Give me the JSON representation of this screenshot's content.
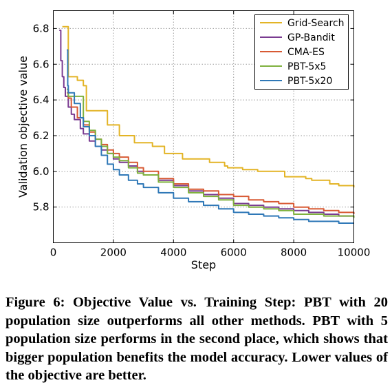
{
  "chart_data": {
    "type": "line",
    "title": "",
    "xlabel": "Step",
    "ylabel": "Validation objective value",
    "xlim": [
      0,
      10000
    ],
    "ylim": [
      5.6,
      6.9
    ],
    "xticks": [
      "0",
      "2000",
      "4000",
      "6000",
      "8000",
      "10000"
    ],
    "yticks": [
      "5.8",
      "6.0",
      "6.2",
      "6.4",
      "6.6",
      "6.8"
    ],
    "grid": true,
    "legend_position": "top-right",
    "series": [
      {
        "name": "Grid-Search",
        "color": "#e3b426",
        "x": [
          300,
          500,
          700,
          800,
          1000,
          1100,
          1700,
          1800,
          2100,
          2200,
          2600,
          2700,
          3200,
          3300,
          3500,
          3700,
          4000,
          4300,
          4500,
          4700,
          5200,
          5300,
          5500,
          5700,
          5800,
          6200,
          6300,
          6700,
          6800,
          7500,
          7700,
          8200,
          8400,
          8600,
          9000,
          9200,
          9500,
          10000
        ],
        "y": [
          6.81,
          6.53,
          6.53,
          6.51,
          6.48,
          6.34,
          6.34,
          6.26,
          6.26,
          6.2,
          6.2,
          6.16,
          6.16,
          6.14,
          6.14,
          6.1,
          6.1,
          6.07,
          6.07,
          6.07,
          6.05,
          6.05,
          6.05,
          6.03,
          6.02,
          6.02,
          6.01,
          6.01,
          6.0,
          6.0,
          5.97,
          5.97,
          5.96,
          5.95,
          5.95,
          5.93,
          5.92,
          5.91
        ]
      },
      {
        "name": "GP-Bandit",
        "color": "#7a3b91",
        "x": [
          200,
          250,
          300,
          350,
          400,
          500,
          600,
          700,
          900,
          1000,
          1200,
          1400,
          1600,
          1800,
          2000,
          2200,
          2500,
          2800,
          3000,
          3500,
          4000,
          4500,
          5000,
          5500,
          6000,
          6500,
          7000,
          7500,
          8000,
          8500,
          9000,
          9500,
          10000
        ],
        "y": [
          6.79,
          6.62,
          6.53,
          6.47,
          6.42,
          6.36,
          6.32,
          6.29,
          6.24,
          6.21,
          6.17,
          6.14,
          6.12,
          6.1,
          6.07,
          6.05,
          6.03,
          6.0,
          5.98,
          5.95,
          5.92,
          5.89,
          5.87,
          5.85,
          5.82,
          5.81,
          5.8,
          5.79,
          5.78,
          5.77,
          5.76,
          5.75,
          5.74
        ]
      },
      {
        "name": "CMA-ES",
        "color": "#d85a34",
        "x": [
          450,
          500,
          600,
          800,
          1000,
          1200,
          1400,
          1600,
          1800,
          2000,
          2200,
          2500,
          2800,
          3000,
          3500,
          4000,
          4500,
          5000,
          5500,
          6000,
          6500,
          7000,
          7500,
          8000,
          8500,
          9000,
          9500,
          10000
        ],
        "y": [
          6.44,
          6.41,
          6.36,
          6.3,
          6.26,
          6.22,
          6.18,
          6.15,
          6.12,
          6.1,
          6.08,
          6.05,
          6.02,
          6.0,
          5.96,
          5.93,
          5.9,
          5.89,
          5.87,
          5.86,
          5.84,
          5.83,
          5.82,
          5.8,
          5.79,
          5.78,
          5.77,
          5.76
        ]
      },
      {
        "name": "PBT-5x5",
        "color": "#7fb13e",
        "x": [
          450,
          500,
          900,
          1000,
          1200,
          1400,
          1600,
          1800,
          2000,
          2200,
          2500,
          2800,
          3000,
          3500,
          4000,
          4500,
          5000,
          5500,
          6000,
          6500,
          7000,
          7500,
          8000,
          8500,
          9000,
          9500,
          9900,
          10000
        ],
        "y": [
          6.46,
          6.42,
          6.42,
          6.28,
          6.23,
          6.18,
          6.14,
          6.1,
          6.08,
          6.06,
          6.02,
          5.99,
          5.98,
          5.94,
          5.91,
          5.88,
          5.86,
          5.84,
          5.81,
          5.8,
          5.79,
          5.78,
          5.76,
          5.76,
          5.75,
          5.75,
          5.75,
          5.74
        ]
      },
      {
        "name": "PBT-5x20",
        "color": "#2f78b7",
        "x": [
          450,
          480,
          500,
          700,
          900,
          1000,
          1200,
          1400,
          1600,
          1800,
          2000,
          2200,
          2500,
          2800,
          3000,
          3500,
          4000,
          4500,
          5000,
          5500,
          6000,
          6500,
          7000,
          7500,
          8000,
          8500,
          9000,
          9500,
          10000
        ],
        "y": [
          6.68,
          6.48,
          6.44,
          6.38,
          6.3,
          6.25,
          6.2,
          6.14,
          6.09,
          6.04,
          6.01,
          5.98,
          5.95,
          5.93,
          5.91,
          5.88,
          5.85,
          5.83,
          5.81,
          5.79,
          5.77,
          5.76,
          5.75,
          5.74,
          5.73,
          5.72,
          5.72,
          5.71,
          5.71
        ]
      }
    ]
  },
  "caption": "Figure 6: Objective Value vs. Training Step: PBT with 20 population size outperforms all other methods. PBT with 5 population size performs in the second place, which shows that bigger population benefits the model accuracy. Lower values of the objective are better."
}
